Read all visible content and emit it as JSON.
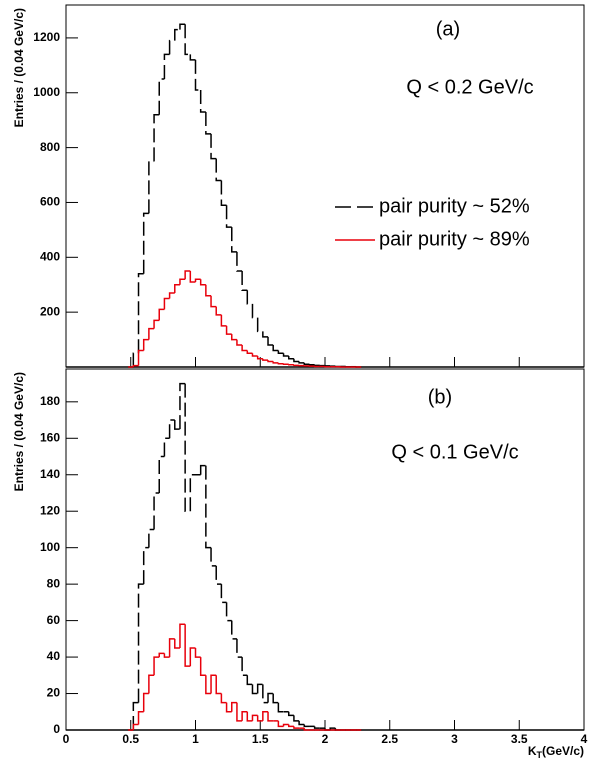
{
  "chart_data": [
    {
      "type": "histogram",
      "panel_label": "(a)",
      "annotation": "Q <  0.2 GeV/c",
      "y_label": "Entries / (0.04 GeV/c)",
      "xlim": [
        0,
        4
      ],
      "ylim": [
        0,
        1320
      ],
      "yticks": [
        200,
        400,
        600,
        800,
        1000,
        1200
      ],
      "bins": [
        0.48,
        0.52,
        0.56,
        0.6,
        0.64,
        0.68,
        0.72,
        0.76,
        0.8,
        0.84,
        0.88,
        0.92,
        0.96,
        1,
        1.04,
        1.08,
        1.12,
        1.16,
        1.2,
        1.24,
        1.28,
        1.32,
        1.36,
        1.4,
        1.44,
        1.48,
        1.52,
        1.56,
        1.6,
        1.64,
        1.68,
        1.72,
        1.76,
        1.8,
        1.84,
        1.88,
        1.92,
        1.96,
        2,
        2.04,
        2.08,
        2.12,
        2.16,
        2.2,
        2.24,
        2.28
      ],
      "series": [
        {
          "name": "pair purity ~ 52%",
          "color": "#000000",
          "line_style": "dashed",
          "values": [
            0,
            50,
            340,
            560,
            750,
            920,
            1050,
            1140,
            1190,
            1230,
            1250,
            1140,
            1120,
            1010,
            930,
            850,
            760,
            680,
            590,
            510,
            420,
            350,
            280,
            230,
            180,
            130,
            110,
            80,
            60,
            50,
            40,
            30,
            20,
            15,
            10,
            8,
            6,
            5,
            4,
            3,
            2,
            2,
            1,
            1,
            0
          ]
        },
        {
          "name": "pair purity ~ 89%",
          "color": "#e8000b",
          "line_style": "solid",
          "values": [
            0,
            5,
            60,
            100,
            140,
            170,
            210,
            250,
            270,
            300,
            320,
            350,
            310,
            320,
            300,
            260,
            220,
            190,
            150,
            120,
            100,
            80,
            60,
            50,
            40,
            30,
            25,
            20,
            15,
            12,
            10,
            8,
            6,
            5,
            4,
            3,
            2,
            2,
            1,
            1,
            1,
            0,
            0,
            0,
            0
          ]
        }
      ]
    },
    {
      "type": "histogram",
      "panel_label": "(b)",
      "annotation": "Q <  0.1 GeV/c",
      "y_label": "Entries / (0.04 GeV/c)",
      "x_label": [
        "K",
        "T",
        "(GeV/c)"
      ],
      "xlim": [
        0,
        4
      ],
      "ylim": [
        0,
        198
      ],
      "xticks": [
        0,
        0.5,
        1,
        1.5,
        2,
        2.5,
        3,
        3.5,
        4
      ],
      "yticks": [
        0,
        20,
        40,
        60,
        80,
        100,
        120,
        140,
        160,
        180
      ],
      "bins": [
        0.48,
        0.52,
        0.56,
        0.6,
        0.64,
        0.68,
        0.72,
        0.76,
        0.8,
        0.84,
        0.88,
        0.92,
        0.96,
        1,
        1.04,
        1.08,
        1.12,
        1.16,
        1.2,
        1.24,
        1.28,
        1.32,
        1.36,
        1.4,
        1.44,
        1.48,
        1.52,
        1.56,
        1.6,
        1.64,
        1.68,
        1.72,
        1.76,
        1.8,
        1.84,
        1.88,
        1.92,
        1.96,
        2,
        2.04,
        2.08,
        2.12,
        2.16,
        2.2,
        2.24,
        2.28
      ],
      "series": [
        {
          "color": "#000000",
          "line_style": "dashed",
          "values": [
            0,
            15,
            80,
            100,
            110,
            130,
            150,
            160,
            170,
            165,
            190,
            120,
            140,
            140,
            145,
            100,
            90,
            80,
            70,
            60,
            50,
            40,
            30,
            25,
            20,
            25,
            15,
            20,
            15,
            10,
            10,
            8,
            5,
            3,
            2,
            2,
            1,
            1,
            0,
            1,
            0,
            0,
            0,
            0,
            0
          ]
        },
        {
          "color": "#e8000b",
          "line_style": "solid",
          "values": [
            0,
            3,
            10,
            20,
            30,
            40,
            42,
            40,
            50,
            45,
            58,
            35,
            45,
            40,
            30,
            20,
            30,
            20,
            15,
            10,
            15,
            5,
            10,
            5,
            8,
            5,
            10,
            5,
            5,
            2,
            3,
            2,
            1,
            1,
            0,
            0,
            0,
            0,
            0,
            0,
            0,
            0,
            0,
            0,
            0
          ]
        }
      ]
    }
  ]
}
